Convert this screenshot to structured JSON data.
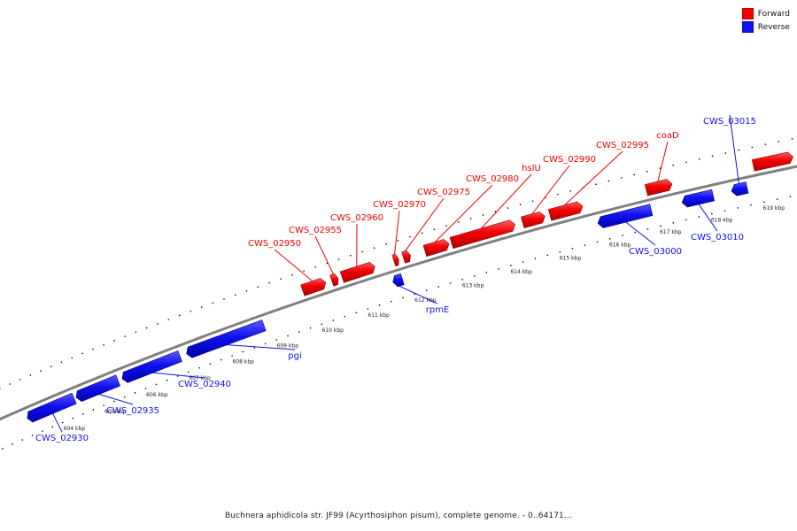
{
  "colors": {
    "forward": "#f00000",
    "reverse": "#1010f0",
    "backbone": "#808080"
  },
  "legend": {
    "forward_label": "Forward",
    "reverse_label": "Reverse"
  },
  "caption": "Buchnera aphidicola str. JF99 (Acyrthosiphon pisum), complete genome. - 0..64171…",
  "ruler": {
    "unit": "kbp",
    "labels": [
      "604 kbp",
      "605 kbp",
      "606 kbp",
      "607 kbp",
      "608 kbp",
      "609 kbp",
      "610 kbp",
      "611 kbp",
      "612 kbp",
      "613 kbp",
      "614 kbp",
      "615 kbp",
      "616 kbp",
      "617 kbp",
      "618 kbp",
      "619 kbp"
    ]
  },
  "genes": [
    {
      "label": "CWS_02930",
      "strand": "reverse",
      "start": 603.4,
      "end": 604.55
    },
    {
      "label": "CWS_02935",
      "strand": "reverse",
      "start": 604.6,
      "end": 605.6
    },
    {
      "label": "CWS_02940",
      "strand": "reverse",
      "start": 605.7,
      "end": 607.05
    },
    {
      "label": "pgi",
      "strand": "reverse",
      "start": 607.2,
      "end": 608.95
    },
    {
      "label": "CWS_02950",
      "strand": "forward",
      "start": 609.95,
      "end": 610.45
    },
    {
      "label": "CWS_02955",
      "strand": "forward",
      "start": 610.58,
      "end": 610.72
    },
    {
      "label": "CWS_02960",
      "strand": "forward",
      "start": 610.8,
      "end": 611.5
    },
    {
      "label": "rpmE",
      "strand": "reverse",
      "start": 611.75,
      "end": 611.95
    },
    {
      "label": "CWS_02970",
      "strand": "forward",
      "start": 611.9,
      "end": 612.0
    },
    {
      "label": "CWS_02975",
      "strand": "forward",
      "start": 612.1,
      "end": 612.25
    },
    {
      "label": "CWS_02980",
      "strand": "forward",
      "start": 612.55,
      "end": 613.05
    },
    {
      "label": "hslU",
      "strand": "forward",
      "start": 613.1,
      "end": 614.4
    },
    {
      "label": "CWS_02990",
      "strand": "forward",
      "start": 614.55,
      "end": 615.0
    },
    {
      "label": "CWS_02995",
      "strand": "forward",
      "start": 615.1,
      "end": 615.75
    },
    {
      "label": "CWS_03000",
      "strand": "reverse",
      "start": 615.95,
      "end": 617.0
    },
    {
      "label": "coaD",
      "strand": "forward",
      "start": 617.0,
      "end": 617.5
    },
    {
      "label": "CWS_03010",
      "strand": "reverse",
      "start": 617.6,
      "end": 618.2
    },
    {
      "label": "CWS_03015",
      "strand": "reverse",
      "start": 618.55,
      "end": 618.85
    },
    {
      "label": "",
      "strand": "forward",
      "start": 619.05,
      "end": 619.8
    }
  ]
}
